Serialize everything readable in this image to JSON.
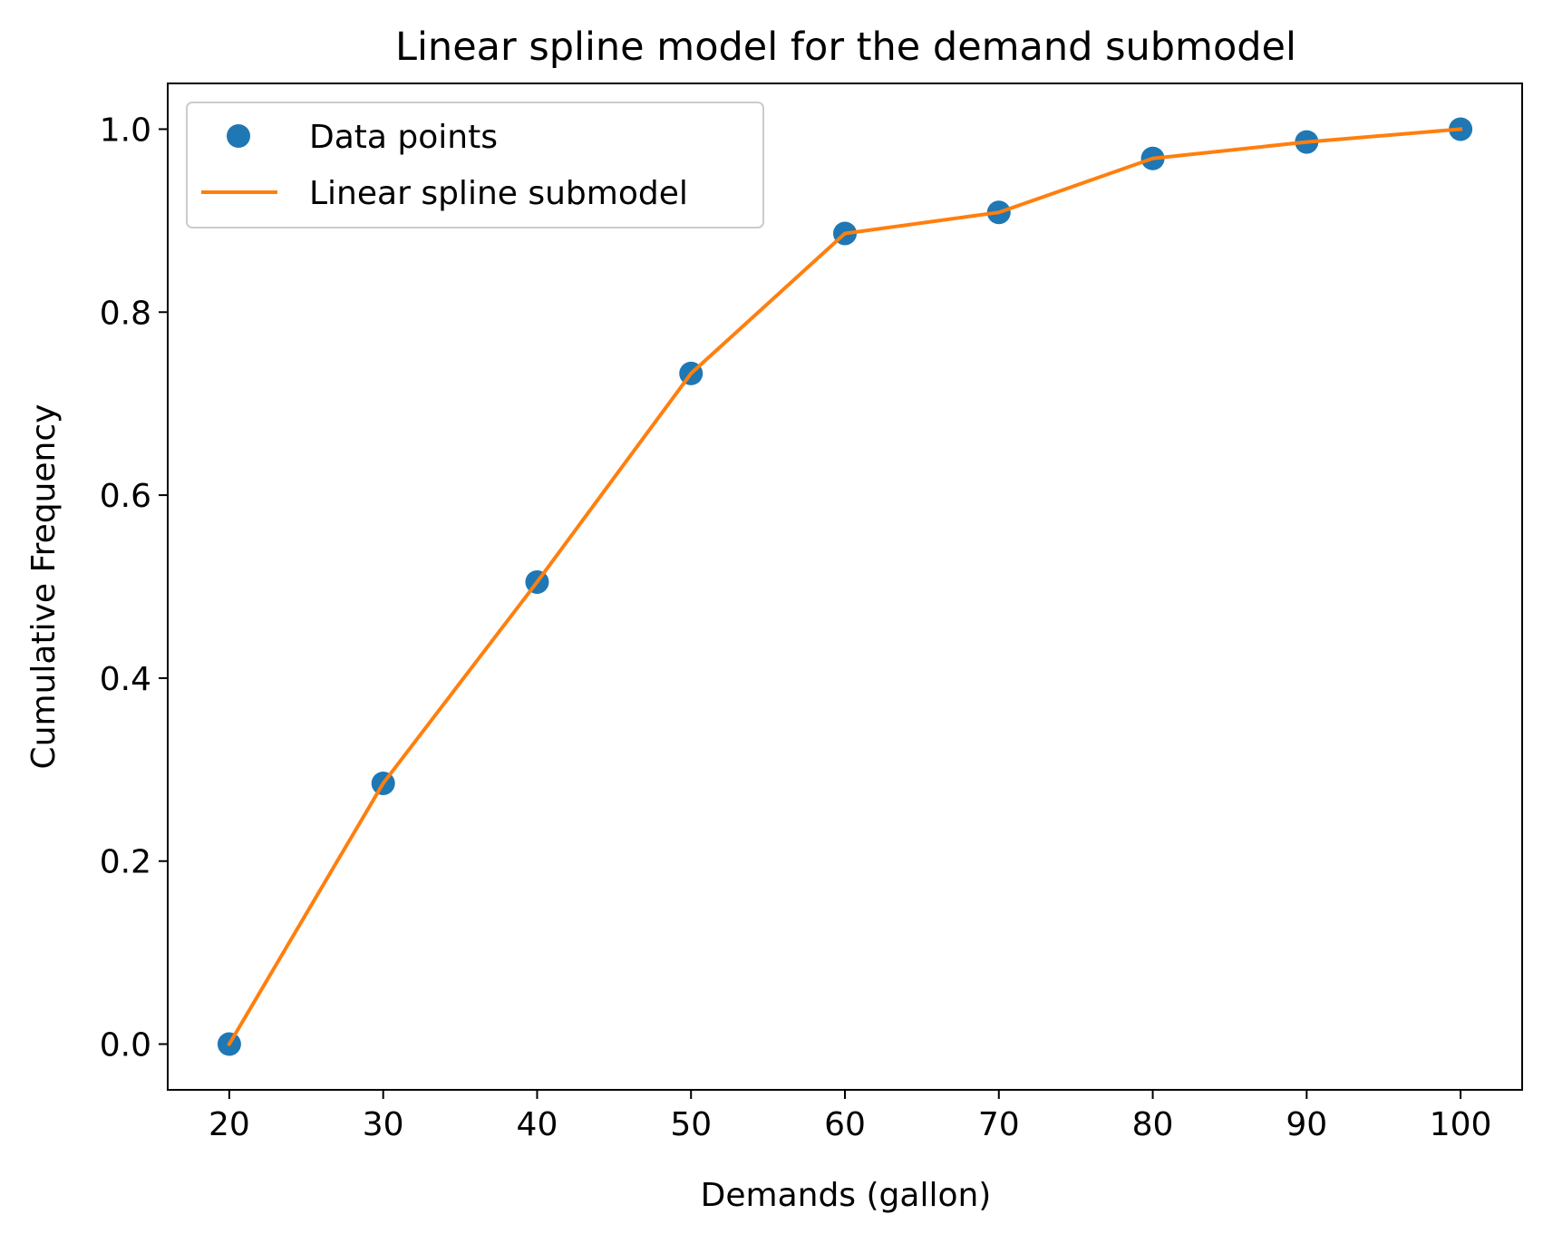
{
  "chart_data": {
    "type": "line",
    "title": "Linear spline model for the demand submodel",
    "xlabel": "Demands (gallon)",
    "ylabel": "Cumulative Frequency",
    "xlim": [
      16,
      104
    ],
    "ylim": [
      -0.05,
      1.05
    ],
    "xticks": [
      20,
      30,
      40,
      50,
      60,
      70,
      80,
      90,
      100
    ],
    "xtick_labels": [
      "20",
      "30",
      "40",
      "50",
      "60",
      "70",
      "80",
      "90",
      "100"
    ],
    "yticks": [
      0.0,
      0.2,
      0.4,
      0.6,
      0.8,
      1.0
    ],
    "ytick_labels": [
      "0.0",
      "0.2",
      "0.4",
      "0.6",
      "0.8",
      "1.0"
    ],
    "grid": false,
    "legend_position": "top-left",
    "series": [
      {
        "name": "Data points",
        "kind": "scatter",
        "color": "#1f77b4",
        "x": [
          20,
          30,
          40,
          50,
          60,
          70,
          80,
          90,
          100
        ],
        "y": [
          0.0,
          0.285,
          0.505,
          0.733,
          0.886,
          0.909,
          0.968,
          0.986,
          1.0
        ]
      },
      {
        "name": "Linear spline submodel",
        "kind": "line",
        "color": "#ff7f0e",
        "x": [
          20,
          30,
          40,
          50,
          60,
          70,
          80,
          90,
          100
        ],
        "y": [
          0.0,
          0.285,
          0.505,
          0.733,
          0.886,
          0.909,
          0.968,
          0.986,
          1.0
        ]
      }
    ]
  }
}
